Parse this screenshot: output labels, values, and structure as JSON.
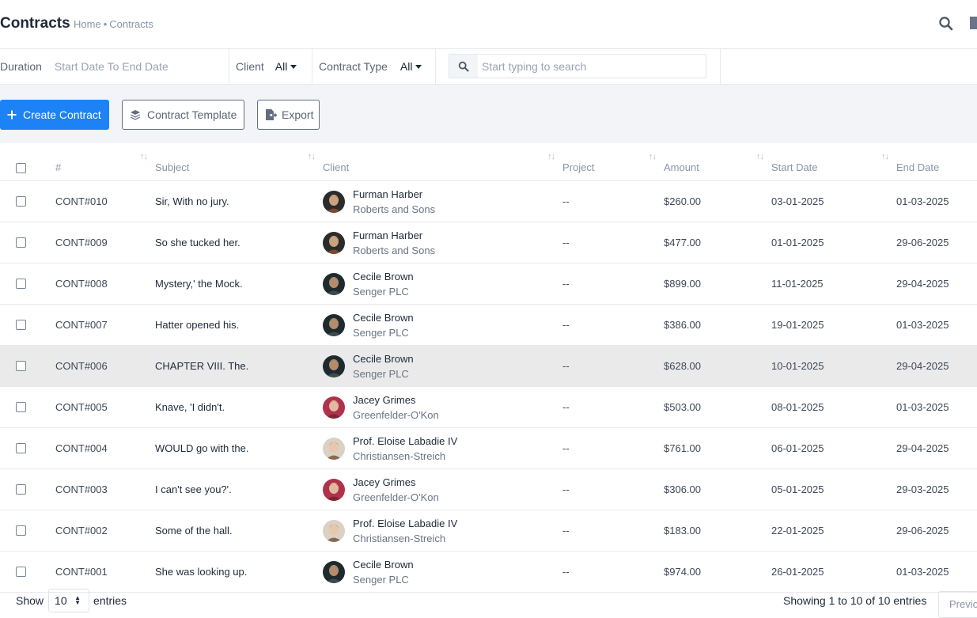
{
  "header": {
    "title": "Contracts",
    "breadcrumb": [
      "Home",
      "Contracts"
    ],
    "breadcrumb_separator": "•"
  },
  "filters": {
    "duration_label": "Duration",
    "duration_value": "Start Date To End Date",
    "client_label": "Client",
    "client_value": "All",
    "contract_type_label": "Contract Type",
    "contract_type_value": "All",
    "search_placeholder": "Start typing to search"
  },
  "actions": {
    "create": "Create Contract",
    "template": "Contract Template",
    "export": "Export"
  },
  "table": {
    "columns": [
      "#",
      "Subject",
      "Client",
      "Project",
      "Amount",
      "Start Date",
      "End Date"
    ],
    "rows": [
      {
        "id": "CONT#010",
        "subject": "Sir, With no jury.",
        "client": "Furman Harber",
        "company": "Roberts and Sons",
        "project": "--",
        "amount": "$260.00",
        "start": "03-01-2025",
        "end": "01-03-2025"
      },
      {
        "id": "CONT#009",
        "subject": "So she tucked her.",
        "client": "Furman Harber",
        "company": "Roberts and Sons",
        "project": "--",
        "amount": "$477.00",
        "start": "01-01-2025",
        "end": "29-06-2025"
      },
      {
        "id": "CONT#008",
        "subject": "Mystery,' the Mock.",
        "client": "Cecile Brown",
        "company": "Senger PLC",
        "project": "--",
        "amount": "$899.00",
        "start": "11-01-2025",
        "end": "29-04-2025"
      },
      {
        "id": "CONT#007",
        "subject": "Hatter opened his.",
        "client": "Cecile Brown",
        "company": "Senger PLC",
        "project": "--",
        "amount": "$386.00",
        "start": "19-01-2025",
        "end": "01-03-2025"
      },
      {
        "id": "CONT#006",
        "subject": "CHAPTER VIII. The.",
        "client": "Cecile Brown",
        "company": "Senger PLC",
        "project": "--",
        "amount": "$628.00",
        "start": "10-01-2025",
        "end": "29-04-2025"
      },
      {
        "id": "CONT#005",
        "subject": "Knave, 'I didn't.",
        "client": "Jacey Grimes",
        "company": "Greenfelder-O'Kon",
        "project": "--",
        "amount": "$503.00",
        "start": "08-01-2025",
        "end": "01-03-2025"
      },
      {
        "id": "CONT#004",
        "subject": "WOULD go with the.",
        "client": "Prof. Eloise Labadie IV",
        "company": "Christiansen-Streich",
        "project": "--",
        "amount": "$761.00",
        "start": "06-01-2025",
        "end": "29-04-2025"
      },
      {
        "id": "CONT#003",
        "subject": "I can't see you?'.",
        "client": "Jacey Grimes",
        "company": "Greenfelder-O'Kon",
        "project": "--",
        "amount": "$306.00",
        "start": "05-01-2025",
        "end": "29-03-2025"
      },
      {
        "id": "CONT#002",
        "subject": "Some of the hall.",
        "client": "Prof. Eloise Labadie IV",
        "company": "Christiansen-Streich",
        "project": "--",
        "amount": "$183.00",
        "start": "22-01-2025",
        "end": "29-06-2025"
      },
      {
        "id": "CONT#001",
        "subject": "She was looking up.",
        "client": "Cecile Brown",
        "company": "Senger PLC",
        "project": "--",
        "amount": "$974.00",
        "start": "26-01-2025",
        "end": "01-03-2025"
      }
    ]
  },
  "footer": {
    "show_label": "Show",
    "page_size": "10",
    "entries_label": "entries",
    "info": "Showing 1 to 10 of 10 entries",
    "previous": "Previous"
  },
  "colors": {
    "primary": "#1d82f5",
    "action_bg": "#f2f4f7",
    "highlight_row": "#eaeaea"
  }
}
